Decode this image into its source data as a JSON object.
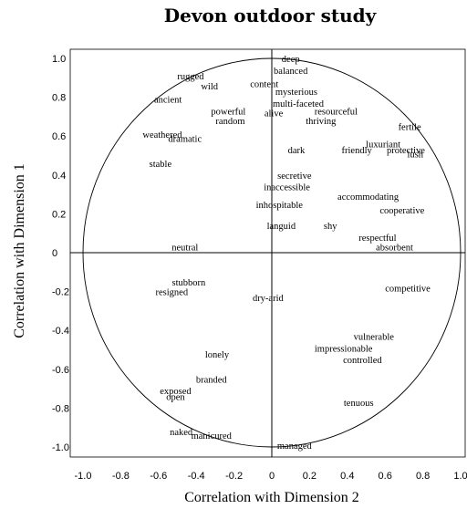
{
  "chart_data": {
    "type": "scatter",
    "title": "Devon outdoor study",
    "xlabel": "Correlation with Dimension 2",
    "ylabel": "Correlation with Dimension 1",
    "xlim": [
      -1.0,
      1.0
    ],
    "ylim": [
      -1.0,
      1.0
    ],
    "xticks": [
      "-1.0",
      "-0.8",
      "-0.6",
      "-0.4",
      "-0.2",
      "0",
      "0.2",
      "0.4",
      "0.6",
      "0.8",
      "1.0"
    ],
    "yticks": [
      "1.0",
      "0.8",
      "0.6",
      "0.4",
      "0.2",
      "0",
      "-0.2",
      "-0.4",
      "-0.6",
      "-0.8",
      "-1.0"
    ],
    "unit_circle": true,
    "grid": false,
    "points": [
      {
        "label": "deep",
        "x": 0.1,
        "y": 1.0
      },
      {
        "label": "balanced",
        "x": 0.1,
        "y": 0.94
      },
      {
        "label": "content",
        "x": -0.04,
        "y": 0.87
      },
      {
        "label": "rugged",
        "x": -0.43,
        "y": 0.91
      },
      {
        "label": "wild",
        "x": -0.33,
        "y": 0.86
      },
      {
        "label": "ancient",
        "x": -0.55,
        "y": 0.79
      },
      {
        "label": "mysterious",
        "x": 0.13,
        "y": 0.83
      },
      {
        "label": "multi-faceted",
        "x": 0.14,
        "y": 0.77
      },
      {
        "label": "powerful",
        "x": -0.23,
        "y": 0.73
      },
      {
        "label": "random",
        "x": -0.22,
        "y": 0.68
      },
      {
        "label": "alive",
        "x": 0.01,
        "y": 0.72
      },
      {
        "label": "resourceful",
        "x": 0.34,
        "y": 0.73
      },
      {
        "label": "thriving",
        "x": 0.26,
        "y": 0.68
      },
      {
        "label": "fertile",
        "x": 0.73,
        "y": 0.65
      },
      {
        "label": "weathered",
        "x": -0.58,
        "y": 0.61
      },
      {
        "label": "dramatic",
        "x": -0.46,
        "y": 0.59
      },
      {
        "label": "luxuriant",
        "x": 0.59,
        "y": 0.56
      },
      {
        "label": "dark",
        "x": 0.13,
        "y": 0.53
      },
      {
        "label": "friendly",
        "x": 0.45,
        "y": 0.53
      },
      {
        "label": "protective",
        "x": 0.71,
        "y": 0.53
      },
      {
        "label": "lush",
        "x": 0.76,
        "y": 0.51
      },
      {
        "label": "stable",
        "x": -0.59,
        "y": 0.46
      },
      {
        "label": "secretive",
        "x": 0.12,
        "y": 0.4
      },
      {
        "label": "inaccessible",
        "x": 0.08,
        "y": 0.34
      },
      {
        "label": "accommodating",
        "x": 0.51,
        "y": 0.29
      },
      {
        "label": "inhospitable",
        "x": 0.04,
        "y": 0.25
      },
      {
        "label": "cooperative",
        "x": 0.69,
        "y": 0.22
      },
      {
        "label": "languid",
        "x": 0.05,
        "y": 0.14
      },
      {
        "label": "shy",
        "x": 0.31,
        "y": 0.14
      },
      {
        "label": "respectful",
        "x": 0.56,
        "y": 0.08
      },
      {
        "label": "absorbent",
        "x": 0.65,
        "y": 0.03
      },
      {
        "label": "neutral",
        "x": -0.46,
        "y": 0.03
      },
      {
        "label": "stubborn",
        "x": -0.44,
        "y": -0.15
      },
      {
        "label": "resigned",
        "x": -0.53,
        "y": -0.2
      },
      {
        "label": "competitive",
        "x": 0.72,
        "y": -0.18
      },
      {
        "label": "dry-arid",
        "x": -0.02,
        "y": -0.23
      },
      {
        "label": "vulnerable",
        "x": 0.54,
        "y": -0.43
      },
      {
        "label": "impressionable",
        "x": 0.38,
        "y": -0.49
      },
      {
        "label": "lonely",
        "x": -0.29,
        "y": -0.52
      },
      {
        "label": "controlled",
        "x": 0.48,
        "y": -0.55
      },
      {
        "label": "branded",
        "x": -0.32,
        "y": -0.65
      },
      {
        "label": "exposed",
        "x": -0.51,
        "y": -0.71
      },
      {
        "label": "open",
        "x": -0.51,
        "y": -0.74
      },
      {
        "label": "tenuous",
        "x": 0.46,
        "y": -0.77
      },
      {
        "label": "naked",
        "x": -0.48,
        "y": -0.92
      },
      {
        "label": "manicured",
        "x": -0.32,
        "y": -0.94
      },
      {
        "label": "managed",
        "x": 0.12,
        "y": -0.99
      }
    ]
  }
}
